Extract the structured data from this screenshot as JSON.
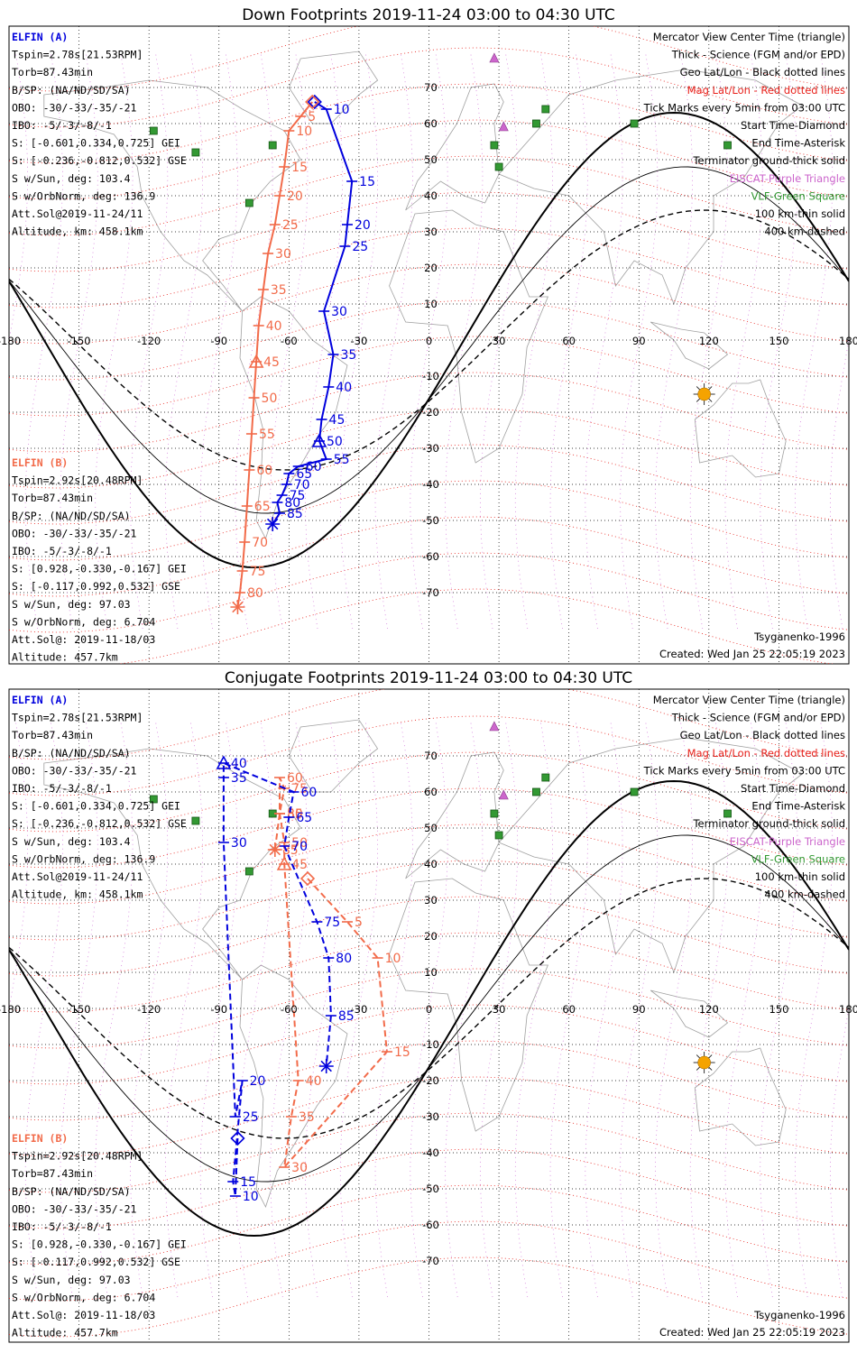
{
  "panels": [
    {
      "title": "Down Footprints 2019-11-24 03:00 to 04:30 UTC",
      "elfin_a": [
        "ELFIN (A)",
        "Tspin=2.78s[21.53RPM]",
        "Torb=87.43min",
        "B/SP: (NA/ND/SD/SA)",
        "OBO: -30/-33/-35/-21",
        "IBO: -5/-3/-8/-1",
        "S: [-0.601,0.334,0.725] GEI",
        "S: [-0.236,-0.812,0.532] GSE",
        "S w/Sun, deg: 103.4",
        "S w/OrbNorm, deg: 136.9",
        "Att.Sol@2019-11-24/11",
        "Altitude, km: 458.1km"
      ],
      "elfin_b": [
        "ELFIN (B)",
        "Tspin=2.92s[20.48RPM]",
        "Torb=87.43min",
        "B/SP: (NA/ND/SD/SA)",
        "OBO: -30/-33/-35/-21",
        "IBO: -5/-3/-8/-1",
        "S: [0.928,-0.330,-0.167] GEI",
        "S: [-0.117,0.992,0.532] GSE",
        "S w/Sun, deg: 97.03",
        "S w/OrbNorm, deg: 6.704",
        "Att.Sol@: 2019-11-18/03",
        "Altitude: 457.7km"
      ],
      "legend": [
        {
          "text": "Mercator View Center Time (triangle)",
          "color": "#000000"
        },
        {
          "text": "Thick - Science (FGM and/or EPD)",
          "color": "#000000"
        },
        {
          "text": "Geo Lat/Lon - Black dotted lines",
          "color": "#000000"
        },
        {
          "text": "Mag Lat/Lon - Red dotted lines",
          "color": "#e8201a"
        },
        {
          "text": "Tick Marks every 5min from 03:00 UTC",
          "color": "#000000"
        },
        {
          "text": "Start Time-Diamond",
          "color": "#000000"
        },
        {
          "text": "End Time-Asterisk",
          "color": "#000000"
        },
        {
          "text": "Terminator ground-thick solid",
          "color": "#000000"
        },
        {
          "text": "EISCAT-Purple Triangle",
          "color": "#cc66cc"
        },
        {
          "text": "VLF-Green Square",
          "color": "#339933"
        },
        {
          "text": "100 km-thin solid",
          "color": "#000000"
        },
        {
          "text": "400 km-dashed",
          "color": "#000000"
        }
      ],
      "model": "Tsyganenko-1996",
      "created": "Created: Wed Jan 25 22:05:19 2023",
      "track_a": [
        {
          "x": -49,
          "y": 66,
          "label": ""
        },
        {
          "x": -44,
          "y": 64,
          "label": "10"
        },
        {
          "x": -33,
          "y": 44,
          "label": "15"
        },
        {
          "x": -35,
          "y": 32,
          "label": "20"
        },
        {
          "x": -36,
          "y": 26,
          "label": "25"
        },
        {
          "x": -45,
          "y": 8,
          "label": "30"
        },
        {
          "x": -41,
          "y": -4,
          "label": "35"
        },
        {
          "x": -43,
          "y": -13,
          "label": "40"
        },
        {
          "x": -46,
          "y": -22,
          "label": "45"
        },
        {
          "x": -47,
          "y": -28,
          "label": "50"
        },
        {
          "x": -44,
          "y": -33,
          "label": "55"
        },
        {
          "x": -56,
          "y": -35,
          "label": "60"
        },
        {
          "x": -60,
          "y": -37,
          "label": "65"
        },
        {
          "x": -61,
          "y": -40,
          "label": "70"
        },
        {
          "x": -63,
          "y": -43,
          "label": "75"
        },
        {
          "x": -65,
          "y": -45,
          "label": "80"
        },
        {
          "x": -64,
          "y": -48,
          "label": "85"
        },
        {
          "x": -67,
          "y": -51,
          "label": ""
        }
      ],
      "track_b": [
        {
          "x": -50,
          "y": 66,
          "label": ""
        },
        {
          "x": -55,
          "y": 62,
          "label": "5"
        },
        {
          "x": -60,
          "y": 58,
          "label": "10"
        },
        {
          "x": -62,
          "y": 48,
          "label": "15"
        },
        {
          "x": -64,
          "y": 40,
          "label": "20"
        },
        {
          "x": -66,
          "y": 32,
          "label": "25"
        },
        {
          "x": -69,
          "y": 24,
          "label": "30"
        },
        {
          "x": -71,
          "y": 14,
          "label": "35"
        },
        {
          "x": -73,
          "y": 4,
          "label": "40"
        },
        {
          "x": -74,
          "y": -6,
          "label": "45"
        },
        {
          "x": -75,
          "y": -16,
          "label": "50"
        },
        {
          "x": -76,
          "y": -26,
          "label": "55"
        },
        {
          "x": -77,
          "y": -36,
          "label": "60"
        },
        {
          "x": -78,
          "y": -46,
          "label": "65"
        },
        {
          "x": -79,
          "y": -56,
          "label": "70"
        },
        {
          "x": -80,
          "y": -64,
          "label": "75"
        },
        {
          "x": -81,
          "y": -70,
          "label": "80"
        },
        {
          "x": -82,
          "y": -74,
          "label": ""
        }
      ]
    },
    {
      "title": "Conjugate Footprints 2019-11-24 03:00 to 04:30 UTC",
      "elfin_a": [
        "ELFIN (A)",
        "Tspin=2.78s[21.53RPM]",
        "Torb=87.43min",
        "B/SP: (NA/ND/SD/SA)",
        "OBO: -30/-33/-35/-21",
        "IBO: -5/-3/-8/-1",
        "S: [-0.601,0.334,0.725] GEI",
        "S: [-0.236,-0.812,0.532] GSE",
        "S w/Sun, deg: 103.4",
        "S w/OrbNorm, deg: 136.9",
        "Att.Sol@2019-11-24/11",
        "Altitude, km: 458.1km"
      ],
      "elfin_b": [
        "ELFIN (B)",
        "Tspin=2.92s[20.48RPM]",
        "Torb=87.43min",
        "B/SP: (NA/ND/SD/SA)",
        "OBO: -30/-33/-35/-21",
        "IBO: -5/-3/-8/-1",
        "S: [0.928,-0.330,-0.167] GEI",
        "S: [-0.117,0.992,0.532] GSE",
        "S w/Sun, deg: 97.03",
        "S w/OrbNorm, deg: 6.704",
        "Att.Sol@: 2019-11-18/03",
        "Altitude: 457.7km"
      ],
      "legend": [
        {
          "text": "Mercator View Center Time (triangle)",
          "color": "#000000"
        },
        {
          "text": "Thick - Science (FGM and/or EPD)",
          "color": "#000000"
        },
        {
          "text": "Geo Lat/Lon - Black dotted lines",
          "color": "#000000"
        },
        {
          "text": "Mag Lat/Lon - Red dotted lines",
          "color": "#e8201a"
        },
        {
          "text": "Tick Marks every 5min from 03:00 UTC",
          "color": "#000000"
        },
        {
          "text": "Start Time-Diamond",
          "color": "#000000"
        },
        {
          "text": "End Time-Asterisk",
          "color": "#000000"
        },
        {
          "text": "Terminator ground-thick solid",
          "color": "#000000"
        },
        {
          "text": "EISCAT-Purple Triangle",
          "color": "#cc66cc"
        },
        {
          "text": "VLF-Green Square",
          "color": "#339933"
        },
        {
          "text": "100 km-thin solid",
          "color": "#000000"
        },
        {
          "text": "400 km-dashed",
          "color": "#000000"
        }
      ],
      "model": "Tsyganenko-1996",
      "created": "Created: Wed Jan 25 22:05:19 2023",
      "track_a": [
        {
          "x": -82,
          "y": -36,
          "label": ""
        },
        {
          "x": -83,
          "y": -52,
          "label": "10"
        },
        {
          "x": -84,
          "y": -48,
          "label": "15"
        },
        {
          "x": -80,
          "y": -20,
          "label": "20"
        },
        {
          "x": -83,
          "y": -30,
          "label": "25"
        },
        {
          "x": -88,
          "y": 46,
          "label": "30"
        },
        {
          "x": -88,
          "y": 64,
          "label": "35"
        },
        {
          "x": -88,
          "y": 68,
          "label": "40"
        },
        {
          "x": -58,
          "y": 60,
          "label": "60"
        },
        {
          "x": -60,
          "y": 53,
          "label": "65"
        },
        {
          "x": -62,
          "y": 45,
          "label": "70"
        },
        {
          "x": -48,
          "y": 24,
          "label": "75"
        },
        {
          "x": -43,
          "y": 14,
          "label": "80"
        },
        {
          "x": -42,
          "y": -2,
          "label": "85"
        },
        {
          "x": -44,
          "y": -16,
          "label": ""
        }
      ],
      "track_b": [
        {
          "x": -52,
          "y": 36,
          "label": ""
        },
        {
          "x": -35,
          "y": 24,
          "label": "5"
        },
        {
          "x": -22,
          "y": 14,
          "label": "10"
        },
        {
          "x": -18,
          "y": -12,
          "label": "15"
        },
        {
          "x": -62,
          "y": -44,
          "label": "30"
        },
        {
          "x": -59,
          "y": -30,
          "label": "35"
        },
        {
          "x": -56,
          "y": -20,
          "label": "40"
        },
        {
          "x": -62,
          "y": 40,
          "label": "45"
        },
        {
          "x": -62,
          "y": 46,
          "label": "50"
        },
        {
          "x": -64,
          "y": 54,
          "label": "55"
        },
        {
          "x": -64,
          "y": 64,
          "label": "60"
        },
        {
          "x": -62,
          "y": 61,
          "label": "75"
        },
        {
          "x": -64,
          "y": 54,
          "label": "80"
        },
        {
          "x": -66,
          "y": 44,
          "label": "85"
        }
      ]
    }
  ],
  "colors": {
    "elfin_a": "#0000dd",
    "elfin_b": "#f26b4a",
    "eiscat": "#cc66cc",
    "vlf": "#339933",
    "sun": "#f5a300",
    "mag_grid": "#e8201a",
    "map": "#a0a0a0"
  },
  "axis": {
    "lon_ticks": [
      -180,
      -150,
      -120,
      -90,
      -60,
      -30,
      0,
      30,
      60,
      90,
      120,
      150,
      180
    ],
    "lat_ticks": [
      70,
      60,
      50,
      40,
      30,
      20,
      10,
      0,
      -10,
      -20,
      -30,
      -40,
      -50,
      -60,
      -70
    ]
  }
}
